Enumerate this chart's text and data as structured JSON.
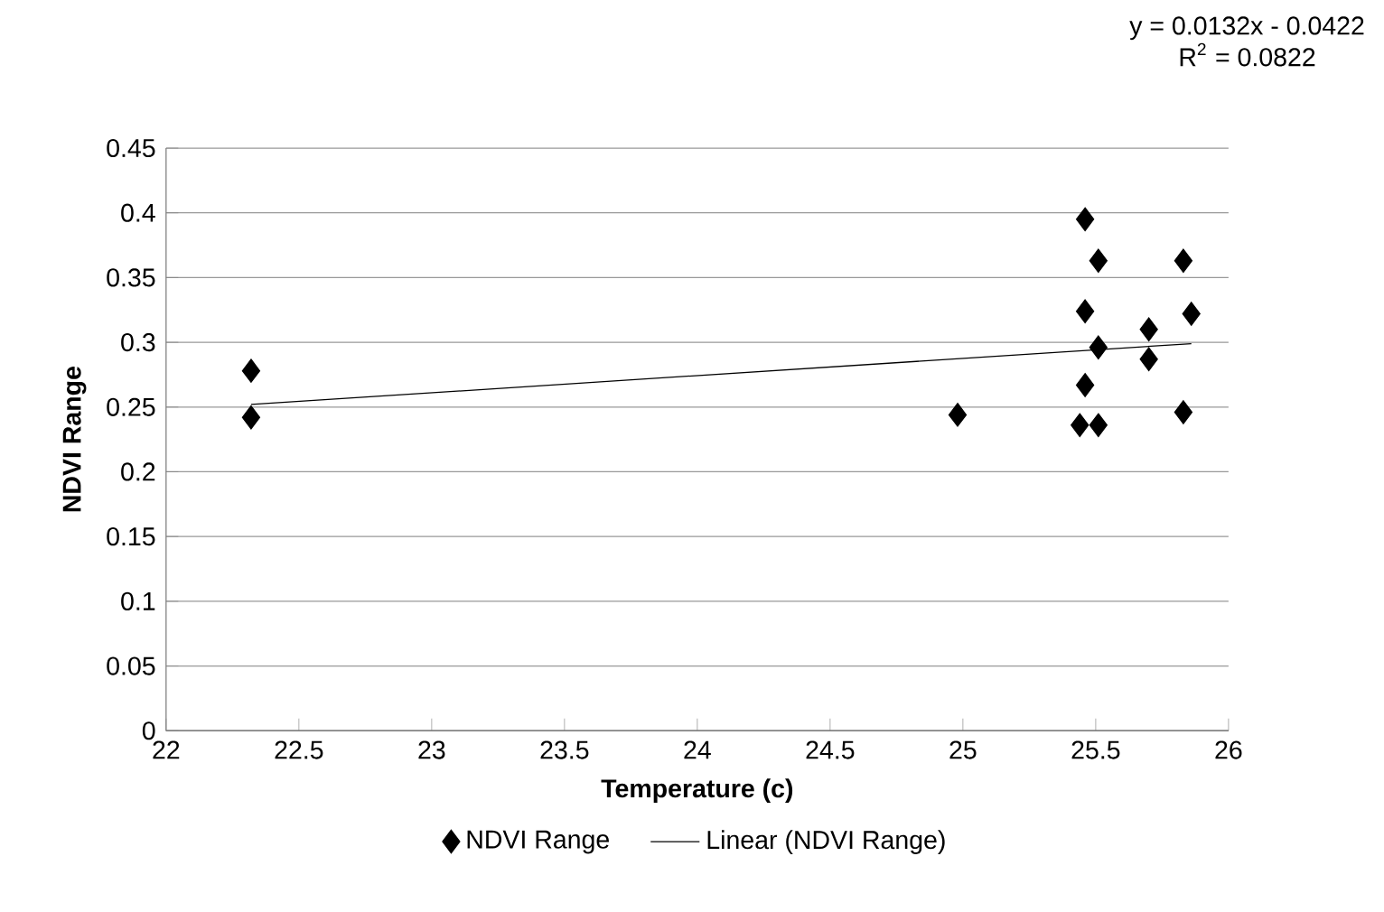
{
  "chart_data": {
    "type": "scatter",
    "xlabel": "Temperature (c)",
    "ylabel": "NDVI Range",
    "xlim": [
      22,
      26
    ],
    "xticks": [
      22,
      22.5,
      23,
      23.5,
      24,
      24.5,
      25,
      25.5,
      26
    ],
    "ylim": [
      0,
      0.45
    ],
    "yticks": [
      0,
      0.05,
      0.1,
      0.15,
      0.2,
      0.25,
      0.3,
      0.35,
      0.4,
      0.45
    ],
    "grid": "y",
    "legend": "bottom",
    "marker": "diamond",
    "annotations": [
      "y = 0.0132x - 0.0422",
      "R$^{2}$ = 0.0822"
    ],
    "series": [
      {
        "name": "NDVI Range",
        "color": "#000000",
        "x": [
          22.32,
          22.32,
          24.98,
          25.44,
          25.51,
          25.46,
          25.51,
          25.46,
          25.51,
          25.46,
          25.7,
          25.7,
          25.83,
          25.86,
          25.83
        ],
        "values": [
          0.278,
          0.242,
          0.244,
          0.236,
          0.236,
          0.395,
          0.363,
          0.324,
          0.296,
          0.267,
          0.31,
          0.287,
          0.363,
          0.322,
          0.246
        ]
      },
      {
        "name": "Linear (NDVI Range)",
        "type": "line",
        "color": "#000000",
        "marker": "none",
        "x": [
          22.32,
          25.86
        ],
        "values": [
          0.252,
          0.299
        ]
      }
    ]
  }
}
